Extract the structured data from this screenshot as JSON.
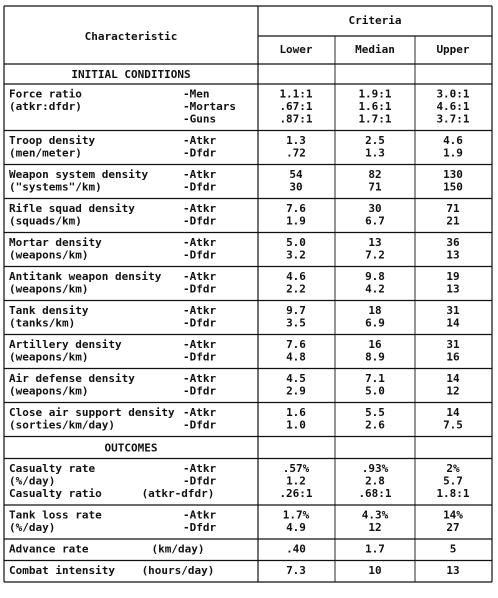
{
  "header": {
    "characteristic": "Characteristic",
    "criteria": "Criteria",
    "columns": [
      "Lower",
      "Median",
      "Upper"
    ]
  },
  "sections": [
    {
      "title": "INITIAL CONDITIONS",
      "groups": [
        {
          "label": [
            "Force ratio",
            "(atkr:dfdr)"
          ],
          "lines": [
            {
              "sub": "-Men",
              "values": [
                "1.1:1",
                "1.9:1",
                "3.0:1"
              ]
            },
            {
              "sub": "-Mortars",
              "values": [
                ".67:1",
                "1.6:1",
                "4.6:1"
              ]
            },
            {
              "sub": "-Guns",
              "values": [
                ".87:1",
                "1.7:1",
                "3.7:1"
              ]
            }
          ]
        },
        {
          "label": [
            "Troop density",
            "(men/meter)"
          ],
          "lines": [
            {
              "sub": "-Atkr",
              "values": [
                "1.3",
                "2.5",
                "4.6"
              ]
            },
            {
              "sub": "-Dfdr",
              "values": [
                ".72",
                "1.3",
                "1.9"
              ]
            }
          ]
        },
        {
          "label": [
            "Weapon system density",
            "(\"systems\"/km)"
          ],
          "lines": [
            {
              "sub": "-Atkr",
              "values": [
                "54",
                "82",
                "130"
              ]
            },
            {
              "sub": "-Dfdr",
              "values": [
                "30",
                "71",
                "150"
              ]
            }
          ]
        },
        {
          "label": [
            "Rifle squad density",
            "(squads/km)"
          ],
          "lines": [
            {
              "sub": "-Atkr",
              "values": [
                "7.6",
                "30",
                "71"
              ]
            },
            {
              "sub": "-Dfdr",
              "values": [
                "1.9",
                "6.7",
                "21"
              ]
            }
          ]
        },
        {
          "label": [
            "Mortar density",
            "(weapons/km)"
          ],
          "lines": [
            {
              "sub": "-Atkr",
              "values": [
                "5.0",
                "13",
                "36"
              ]
            },
            {
              "sub": "-Dfdr",
              "values": [
                "3.2",
                "7.2",
                "13"
              ]
            }
          ]
        },
        {
          "label": [
            "Antitank weapon density",
            "(weapons/km)"
          ],
          "lines": [
            {
              "sub": "-Atkr",
              "values": [
                "4.6",
                "9.8",
                "19"
              ]
            },
            {
              "sub": "-Dfdr",
              "values": [
                "2.2",
                "4.2",
                "13"
              ]
            }
          ]
        },
        {
          "label": [
            "Tank density",
            "(tanks/km)"
          ],
          "lines": [
            {
              "sub": "-Atkr",
              "values": [
                "9.7",
                "18",
                "31"
              ]
            },
            {
              "sub": "-Dfdr",
              "values": [
                "3.5",
                "6.9",
                "14"
              ]
            }
          ]
        },
        {
          "label": [
            "Artillery density",
            "(weapons/km)"
          ],
          "lines": [
            {
              "sub": "-Atkr",
              "values": [
                "7.6",
                "16",
                "31"
              ]
            },
            {
              "sub": "-Dfdr",
              "values": [
                "4.8",
                "8.9",
                "16"
              ]
            }
          ]
        },
        {
          "label": [
            "Air defense density",
            "(weapons/km)"
          ],
          "lines": [
            {
              "sub": "-Atkr",
              "values": [
                "4.5",
                "7.1",
                "14"
              ]
            },
            {
              "sub": "-Dfdr",
              "values": [
                "2.9",
                "5.0",
                "12"
              ]
            }
          ]
        },
        {
          "label": [
            "Close air support density",
            "(sorties/km/day)"
          ],
          "lines": [
            {
              "sub": "-Atkr",
              "values": [
                "1.6",
                "5.5",
                "14"
              ]
            },
            {
              "sub": "-Dfdr",
              "values": [
                "1.0",
                "2.6",
                "7.5"
              ]
            }
          ]
        }
      ]
    },
    {
      "title": "OUTCOMES",
      "groups": [
        {
          "label": [
            "Casualty rate",
            "(%/day)",
            "Casualty ratio"
          ],
          "lines": [
            {
              "sub": "-Atkr",
              "values": [
                ".57%",
                ".93%",
                "2%"
              ]
            },
            {
              "sub": "-Dfdr",
              "values": [
                "1.2",
                "2.8",
                "5.7"
              ]
            },
            {
              "sub": "(atkr-dfdr)",
              "values": [
                ".26:1",
                ".68:1",
                "1.8:1"
              ]
            }
          ]
        },
        {
          "label": [
            "Tank loss rate",
            "(%/day)"
          ],
          "lines": [
            {
              "sub": "-Atkr",
              "values": [
                "1.7%",
                "4.3%",
                "14%"
              ]
            },
            {
              "sub": "-Dfdr",
              "values": [
                "4.9",
                "12",
                "27"
              ]
            }
          ]
        },
        {
          "label": [
            "Advance rate"
          ],
          "lines": [
            {
              "sub": "(km/day)",
              "values": [
                ".40",
                "1.7",
                "5"
              ]
            }
          ]
        },
        {
          "label": [
            "Combat intensity"
          ],
          "lines": [
            {
              "sub": "(hours/day)",
              "values": [
                "7.3",
                "10",
                "13"
              ]
            }
          ]
        }
      ]
    }
  ]
}
